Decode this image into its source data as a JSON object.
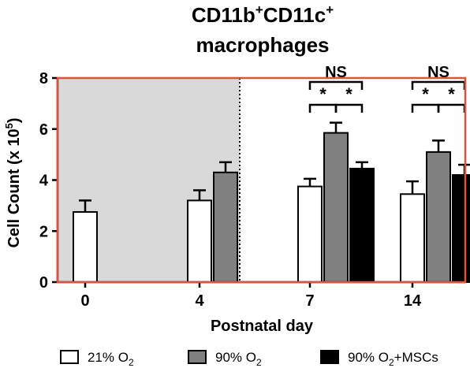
{
  "chart_data": {
    "type": "bar",
    "title_line1_parts": [
      "CD11b",
      "+",
      "CD11c",
      "+"
    ],
    "title_line2": "macrophages",
    "xlabel": "Postnatal day",
    "ylabel": "Cell  Count (x 10",
    "ylabel_exp": "5",
    "ylabel_close": ")",
    "categories": [
      "0",
      "4",
      "7",
      "14"
    ],
    "ylim": [
      0,
      8
    ],
    "yticks": [
      "0",
      "2",
      "4",
      "6",
      "8"
    ],
    "series": [
      {
        "name": "21% O",
        "sub": "2",
        "suffix": "",
        "fill": "#ffffff",
        "values": [
          2.75,
          3.2,
          3.75,
          3.45
        ],
        "errors": [
          0.45,
          0.4,
          0.3,
          0.5
        ]
      },
      {
        "name": "90% O",
        "sub": "2",
        "suffix": "",
        "fill": "#808080",
        "values": [
          null,
          4.3,
          5.85,
          5.1
        ],
        "errors": [
          null,
          0.4,
          0.4,
          0.45
        ]
      },
      {
        "name": "90% O",
        "sub": "2",
        "suffix": "+MSCs",
        "fill": "#000000",
        "values": [
          null,
          null,
          4.45,
          4.2
        ],
        "errors": [
          null,
          null,
          0.25,
          0.4
        ]
      }
    ],
    "shaded_region": {
      "from_category": "0",
      "to_category": "4",
      "color": "#d9d9d9"
    },
    "frame_color": "#e0523a",
    "annotations": [
      {
        "category": "7",
        "text": "NS",
        "from_series": 0,
        "to_series": 2,
        "level": 2
      },
      {
        "category": "7",
        "text": "*",
        "from_series": 0,
        "to_series": 1,
        "level": 1
      },
      {
        "category": "7",
        "text": "*",
        "from_series": 1,
        "to_series": 2,
        "level": 1
      },
      {
        "category": "14",
        "text": "NS",
        "from_series": 0,
        "to_series": 2,
        "level": 2
      },
      {
        "category": "14",
        "text": "*",
        "from_series": 0,
        "to_series": 1,
        "level": 1
      },
      {
        "category": "14",
        "text": "*",
        "from_series": 1,
        "to_series": 2,
        "level": 1
      }
    ],
    "legend_position": "bottom"
  }
}
